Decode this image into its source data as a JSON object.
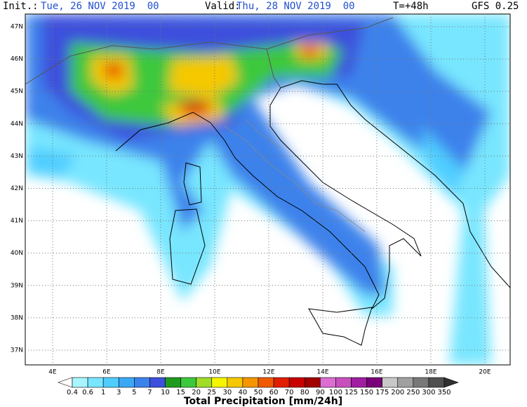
{
  "header": {
    "init_label": "Init.:",
    "init_time": "Tue, 26 NOV 2019  00",
    "valid_label": "Valid:",
    "valid_time": "Thu, 28 NOV 2019  00",
    "lead": "T=+48h",
    "model": "GFS 0.25"
  },
  "map": {
    "lat_labels": [
      "47N",
      "46N",
      "45N",
      "44N",
      "43N",
      "42N",
      "41N",
      "40N",
      "39N",
      "38N",
      "37N"
    ],
    "lon_labels": [
      "4E",
      "6E",
      "8E",
      "10E",
      "12E",
      "14E",
      "16E",
      "18E",
      "20E"
    ]
  },
  "colorbar": {
    "title": "Total Precipitation [mm/24h]",
    "labels": [
      "0.4",
      "0.6",
      "1",
      "3",
      "5",
      "7",
      "10",
      "15",
      "20",
      "25",
      "30",
      "40",
      "50",
      "60",
      "70",
      "80",
      "90",
      "100",
      "125",
      "150",
      "175",
      "200",
      "250",
      "300",
      "350"
    ],
    "colors": [
      "#ffffff",
      "#a8f5ff",
      "#78e6ff",
      "#50cdff",
      "#3aa8f5",
      "#3c82eb",
      "#3c50dc",
      "#1e9b1e",
      "#3cc83c",
      "#a0dc28",
      "#f5f500",
      "#f5c800",
      "#f59600",
      "#f05a00",
      "#e11e00",
      "#c80000",
      "#a00000",
      "#dc6ed2",
      "#c850be",
      "#a01ea0",
      "#780078",
      "#c8c8c8",
      "#a0a0a0",
      "#787878",
      "#505050",
      "#303030"
    ]
  }
}
